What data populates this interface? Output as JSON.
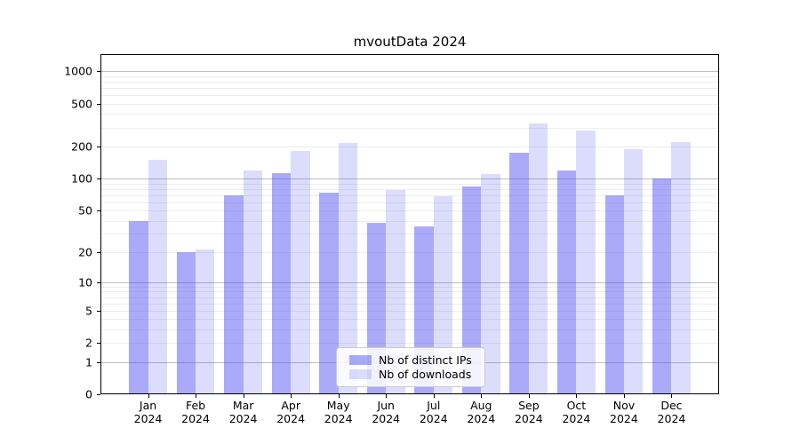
{
  "title": "mvoutData 2024",
  "year_label": "2024",
  "chart_data": {
    "type": "bar",
    "title": "mvoutData 2024",
    "categories": [
      "Jan",
      "Feb",
      "Mar",
      "Apr",
      "May",
      "Jun",
      "Jul",
      "Aug",
      "Sep",
      "Oct",
      "Nov",
      "Dec"
    ],
    "x_tick_second_line": "2024",
    "series": [
      {
        "name": "Nb of distinct IPs",
        "color": "rgba(70,70,242,0.46)",
        "values": [
          40,
          20,
          70,
          112,
          73,
          38,
          35,
          85,
          175,
          120,
          70,
          100
        ]
      },
      {
        "name": "Nb of downloads",
        "color": "rgba(70,70,242,0.19)",
        "values": [
          150,
          21,
          120,
          180,
          215,
          78,
          68,
          110,
          330,
          280,
          190,
          220
        ]
      }
    ],
    "y_ticks": [
      0,
      1,
      2,
      5,
      10,
      20,
      50,
      100,
      200,
      500,
      1000
    ],
    "y_scale": "log10(x+1)",
    "ylim": [
      0,
      1450
    ],
    "grid": true,
    "grid_major_color": "#bdbdbd",
    "grid_minor_color": "#ededed",
    "axis_color": "#000000",
    "legend_position": "lower-center"
  }
}
